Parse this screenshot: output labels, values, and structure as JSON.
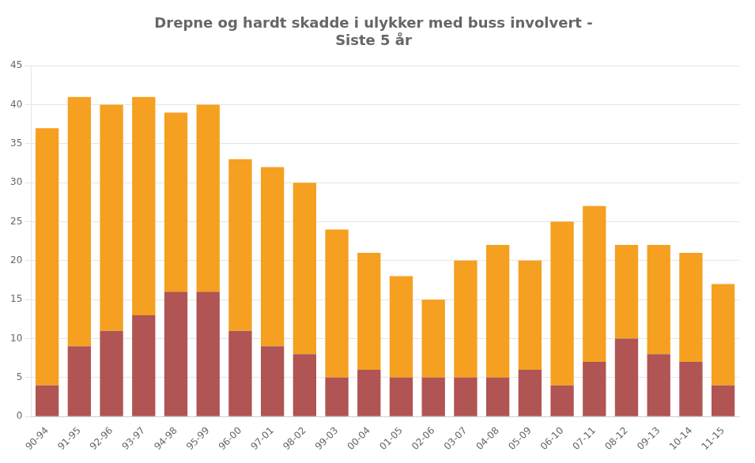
{
  "chart_data": {
    "type": "bar",
    "stacked": true,
    "title": "Drepne og hardt skadde i ulykker med buss involvert -\nSiste 5 år",
    "categories": [
      "90-94",
      "91-95",
      "92-96",
      "93-97",
      "94-98",
      "95-99",
      "96-00",
      "97-01",
      "98-02",
      "99-03",
      "00-04",
      "01-05",
      "02-06",
      "03-07",
      "04-08",
      "05-09",
      "06-10",
      "07-11",
      "08-12",
      "09-13",
      "10-14",
      "11-15"
    ],
    "series": [
      {
        "color": "#b05454",
        "values": [
          4,
          9,
          11,
          13,
          16,
          16,
          11,
          9,
          8,
          5,
          6,
          5,
          5,
          5,
          5,
          6,
          4,
          7,
          10,
          8,
          7,
          4
        ]
      },
      {
        "color": "#f5a020",
        "values": [
          33,
          32,
          29,
          28,
          23,
          24,
          22,
          23,
          22,
          19,
          15,
          13,
          10,
          15,
          17,
          14,
          21,
          20,
          12,
          14,
          14,
          13
        ]
      }
    ],
    "ylim": [
      0,
      45
    ],
    "yticks": [
      0,
      5,
      10,
      15,
      20,
      25,
      30,
      35,
      40,
      45
    ],
    "grid": true
  }
}
